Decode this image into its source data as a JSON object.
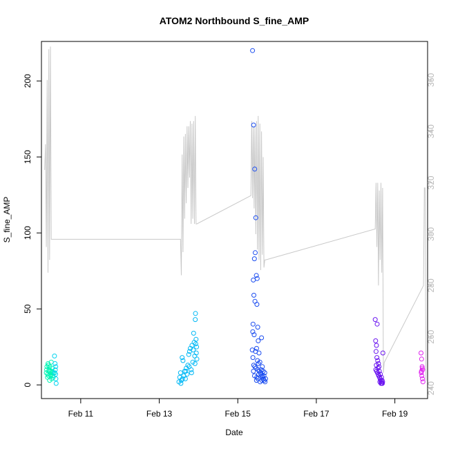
{
  "chart_data": {
    "type": "scatter",
    "title": "ATOM2 Northbound S_fine_AMP",
    "xlabel": "Date",
    "ylabel": "S_fine_AMP",
    "x_axis": {
      "kind": "date",
      "range": [
        "2023-02-10T00:00",
        "2023-02-19T20:00"
      ],
      "ticks": [
        {
          "value": "2023-02-11T00:00",
          "label": "Feb 11"
        },
        {
          "value": "2023-02-13T00:00",
          "label": "Feb 13"
        },
        {
          "value": "2023-02-15T00:00",
          "label": "Feb 15"
        },
        {
          "value": "2023-02-17T00:00",
          "label": "Feb 17"
        },
        {
          "value": "2023-02-19T00:00",
          "label": "Feb 19"
        }
      ]
    },
    "ylim": [
      -9,
      226
    ],
    "yticks": [
      0,
      50,
      100,
      150,
      200
    ],
    "y2lim": [
      236,
      375
    ],
    "y2ticks": [
      240,
      260,
      280,
      300,
      320,
      340,
      360
    ],
    "grid": false,
    "series": [
      {
        "color": "#00f5b5",
        "points": [
          [
            "2023-02-10T03:00",
            8
          ],
          [
            "2023-02-10T03:20",
            12
          ],
          [
            "2023-02-10T03:40",
            5
          ],
          [
            "2023-02-10T04:00",
            14
          ],
          [
            "2023-02-10T04:20",
            6
          ],
          [
            "2023-02-10T04:40",
            10
          ],
          [
            "2023-02-10T05:00",
            3
          ],
          [
            "2023-02-10T05:20",
            9
          ],
          [
            "2023-02-10T05:40",
            7
          ],
          [
            "2023-02-10T06:00",
            15
          ],
          [
            "2023-02-10T06:20",
            4
          ],
          [
            "2023-02-10T06:40",
            11
          ],
          [
            "2023-02-10T07:00",
            6
          ],
          [
            "2023-02-10T07:20",
            8
          ],
          [
            "2023-02-10T03:10",
            10
          ],
          [
            "2023-02-10T03:50",
            7
          ],
          [
            "2023-02-10T04:30",
            9
          ],
          [
            "2023-02-10T05:10",
            12
          ],
          [
            "2023-02-10T05:50",
            6
          ],
          [
            "2023-02-10T06:30",
            8
          ],
          [
            "2023-02-10T07:10",
            5
          ],
          [
            "2023-02-10T04:10",
            13
          ],
          [
            "2023-02-10T06:10",
            9
          ]
        ]
      },
      {
        "color": "#00d5f0",
        "points": [
          [
            "2023-02-10T08:00",
            19
          ],
          [
            "2023-02-10T08:20",
            14
          ],
          [
            "2023-02-10T08:30",
            10
          ],
          [
            "2023-02-10T08:40",
            7
          ],
          [
            "2023-02-10T08:50",
            4
          ],
          [
            "2023-02-10T09:00",
            1
          ],
          [
            "2023-02-10T08:10",
            8
          ],
          [
            "2023-02-10T08:45",
            12
          ]
        ]
      },
      {
        "color": "#00b8f5",
        "points": [
          [
            "2023-02-13T12:00",
            2
          ],
          [
            "2023-02-13T12:30",
            5
          ],
          [
            "2023-02-13T13:00",
            8
          ],
          [
            "2023-02-13T13:30",
            3
          ],
          [
            "2023-02-13T14:00",
            18
          ],
          [
            "2023-02-13T14:30",
            16
          ],
          [
            "2023-02-13T15:00",
            6
          ],
          [
            "2023-02-13T15:30",
            9
          ],
          [
            "2023-02-13T16:00",
            4
          ],
          [
            "2023-02-13T16:30",
            11
          ],
          [
            "2023-02-13T17:00",
            7
          ],
          [
            "2023-02-13T17:30",
            13
          ],
          [
            "2023-02-13T18:00",
            20
          ],
          [
            "2023-02-13T18:30",
            22
          ],
          [
            "2023-02-13T19:00",
            24
          ],
          [
            "2023-02-13T19:30",
            10
          ],
          [
            "2023-02-13T20:00",
            26
          ],
          [
            "2023-02-13T20:30",
            15
          ],
          [
            "2023-02-13T21:00",
            34
          ],
          [
            "2023-02-13T21:20",
            28
          ],
          [
            "2023-02-13T21:40",
            19
          ],
          [
            "2023-02-13T22:00",
            43
          ],
          [
            "2023-02-13T22:10",
            47
          ],
          [
            "2023-02-13T22:20",
            27
          ],
          [
            "2023-02-13T22:30",
            30
          ],
          [
            "2023-02-13T22:40",
            21
          ],
          [
            "2023-02-13T22:50",
            25
          ],
          [
            "2023-02-13T23:00",
            17
          ],
          [
            "2023-02-13T13:15",
            1
          ],
          [
            "2023-02-13T14:15",
            4
          ],
          [
            "2023-02-13T16:15",
            9
          ],
          [
            "2023-02-13T18:15",
            12
          ],
          [
            "2023-02-13T19:45",
            8
          ],
          [
            "2023-02-13T20:45",
            23
          ],
          [
            "2023-02-13T21:50",
            14
          ]
        ]
      },
      {
        "color": "#1a4cf0",
        "points": [
          [
            "2023-02-15T09:00",
            220
          ],
          [
            "2023-02-15T09:40",
            171
          ],
          [
            "2023-02-15T10:20",
            142
          ],
          [
            "2023-02-15T11:00",
            110
          ],
          [
            "2023-02-15T10:40",
            87
          ],
          [
            "2023-02-15T10:10",
            83
          ],
          [
            "2023-02-15T11:20",
            72
          ],
          [
            "2023-02-15T11:50",
            70
          ],
          [
            "2023-02-15T09:30",
            69
          ],
          [
            "2023-02-15T09:50",
            59
          ],
          [
            "2023-02-15T10:30",
            55
          ],
          [
            "2023-02-15T11:40",
            53
          ],
          [
            "2023-02-15T09:20",
            40
          ],
          [
            "2023-02-15T12:10",
            38
          ],
          [
            "2023-02-15T09:10",
            35
          ],
          [
            "2023-02-15T10:00",
            33
          ],
          [
            "2023-02-15T14:30",
            31
          ],
          [
            "2023-02-15T12:30",
            29
          ],
          [
            "2023-02-15T08:50",
            23
          ],
          [
            "2023-02-15T11:30",
            24
          ],
          [
            "2023-02-15T10:50",
            22
          ],
          [
            "2023-02-15T13:00",
            21
          ],
          [
            "2023-02-15T09:15",
            18
          ],
          [
            "2023-02-15T12:00",
            16
          ],
          [
            "2023-02-15T13:30",
            15
          ],
          [
            "2023-02-15T12:40",
            14
          ],
          [
            "2023-02-15T09:45",
            13
          ],
          [
            "2023-02-15T10:25",
            12
          ],
          [
            "2023-02-15T11:10",
            11
          ],
          [
            "2023-02-15T12:20",
            10
          ],
          [
            "2023-02-15T13:10",
            9
          ],
          [
            "2023-02-15T13:50",
            8
          ],
          [
            "2023-02-15T14:10",
            7
          ],
          [
            "2023-02-15T14:50",
            6
          ],
          [
            "2023-02-15T15:10",
            5
          ],
          [
            "2023-02-15T15:40",
            4
          ],
          [
            "2023-02-15T16:10",
            3
          ],
          [
            "2023-02-15T16:40",
            2
          ],
          [
            "2023-02-15T10:15",
            6
          ],
          [
            "2023-02-15T11:25",
            3
          ],
          [
            "2023-02-15T12:50",
            7
          ],
          [
            "2023-02-15T13:40",
            2
          ],
          [
            "2023-02-15T14:20",
            10
          ],
          [
            "2023-02-15T15:00",
            12
          ],
          [
            "2023-02-15T15:30",
            9
          ],
          [
            "2023-02-15T16:00",
            6
          ],
          [
            "2023-02-15T16:30",
            8
          ],
          [
            "2023-02-15T17:00",
            4
          ],
          [
            "2023-02-15T09:35",
            9
          ],
          [
            "2023-02-15T11:35",
            5
          ],
          [
            "2023-02-15T12:15",
            4
          ],
          [
            "2023-02-15T14:40",
            3
          ]
        ]
      },
      {
        "color": "#6a14f0",
        "points": [
          [
            "2023-02-18T12:00",
            43
          ],
          [
            "2023-02-18T13:10",
            40
          ],
          [
            "2023-02-18T12:15",
            29
          ],
          [
            "2023-02-18T12:45",
            26
          ],
          [
            "2023-02-18T16:40",
            21
          ],
          [
            "2023-02-18T12:30",
            22
          ],
          [
            "2023-02-18T13:00",
            18
          ],
          [
            "2023-02-18T13:30",
            16
          ],
          [
            "2023-02-18T14:00",
            14
          ],
          [
            "2023-02-18T14:20",
            12
          ],
          [
            "2023-02-18T12:20",
            10
          ],
          [
            "2023-02-18T12:50",
            9
          ],
          [
            "2023-02-18T13:20",
            8
          ],
          [
            "2023-02-18T13:50",
            7
          ],
          [
            "2023-02-18T14:10",
            6
          ],
          [
            "2023-02-18T14:40",
            5
          ],
          [
            "2023-02-18T15:00",
            4
          ],
          [
            "2023-02-18T15:20",
            3
          ],
          [
            "2023-02-18T15:40",
            2
          ],
          [
            "2023-02-18T16:00",
            1
          ],
          [
            "2023-02-18T16:20",
            1
          ],
          [
            "2023-02-18T14:30",
            9
          ],
          [
            "2023-02-18T15:10",
            7
          ],
          [
            "2023-02-18T15:50",
            5
          ],
          [
            "2023-02-18T16:10",
            3
          ],
          [
            "2023-02-18T13:40",
            11
          ],
          [
            "2023-02-18T12:40",
            13
          ],
          [
            "2023-02-18T14:50",
            2
          ],
          [
            "2023-02-18T15:30",
            1
          ],
          [
            "2023-02-18T16:30",
            2
          ]
        ]
      },
      {
        "color": "#e020f0",
        "points": [
          [
            "2023-02-19T16:00",
            21
          ],
          [
            "2023-02-19T16:20",
            17
          ],
          [
            "2023-02-19T16:40",
            12
          ],
          [
            "2023-02-19T17:00",
            10
          ],
          [
            "2023-02-19T16:10",
            8
          ],
          [
            "2023-02-19T16:30",
            6
          ],
          [
            "2023-02-19T16:50",
            4
          ],
          [
            "2023-02-19T17:10",
            2
          ],
          [
            "2023-02-19T16:15",
            9
          ],
          [
            "2023-02-19T16:45",
            11
          ]
        ]
      }
    ],
    "secondary_line": {
      "color": "#c8c8c8",
      "points": [
        [
          "2023-02-10T02:00",
          325
        ],
        [
          "2023-02-10T02:30",
          335
        ],
        [
          "2023-02-10T03:00",
          295
        ],
        [
          "2023-02-10T03:30",
          360
        ],
        [
          "2023-02-10T04:00",
          285
        ],
        [
          "2023-02-10T04:30",
          372
        ],
        [
          "2023-02-10T05:00",
          290
        ],
        [
          "2023-02-10T05:30",
          373
        ],
        [
          "2023-02-10T06:00",
          298
        ],
        [
          "2023-02-10T06:10",
          298
        ],
        [
          "2023-02-13T13:00",
          298
        ],
        [
          "2023-02-13T13:30",
          284
        ],
        [
          "2023-02-13T14:00",
          331
        ],
        [
          "2023-02-13T14:30",
          293
        ],
        [
          "2023-02-13T15:00",
          338
        ],
        [
          "2023-02-13T15:30",
          306
        ],
        [
          "2023-02-13T16:00",
          339
        ],
        [
          "2023-02-13T16:30",
          312
        ],
        [
          "2023-02-13T17:00",
          342
        ],
        [
          "2023-02-13T17:30",
          318
        ],
        [
          "2023-02-13T18:00",
          342
        ],
        [
          "2023-02-13T18:30",
          322
        ],
        [
          "2023-02-13T19:00",
          344
        ],
        [
          "2023-02-13T19:30",
          304
        ],
        [
          "2023-02-13T20:00",
          343
        ],
        [
          "2023-02-13T20:30",
          306
        ],
        [
          "2023-02-13T21:00",
          344
        ],
        [
          "2023-02-13T21:30",
          304
        ],
        [
          "2023-02-13T22:00",
          346
        ],
        [
          "2023-02-13T22:30",
          304
        ],
        [
          "2023-02-13T23:00",
          304
        ],
        [
          "2023-02-15T08:00",
          315
        ],
        [
          "2023-02-15T08:30",
          344
        ],
        [
          "2023-02-15T09:00",
          314
        ],
        [
          "2023-02-15T09:30",
          342
        ],
        [
          "2023-02-15T10:00",
          310
        ],
        [
          "2023-02-15T10:30",
          342
        ],
        [
          "2023-02-15T11:00",
          300
        ],
        [
          "2023-02-15T11:30",
          344
        ],
        [
          "2023-02-15T12:00",
          294
        ],
        [
          "2023-02-15T12:30",
          346
        ],
        [
          "2023-02-15T13:00",
          290
        ],
        [
          "2023-02-15T13:30",
          343
        ],
        [
          "2023-02-15T14:00",
          286
        ],
        [
          "2023-02-15T14:30",
          340
        ],
        [
          "2023-02-15T15:00",
          292
        ],
        [
          "2023-02-15T15:30",
          330
        ],
        [
          "2023-02-15T16:00",
          287
        ],
        [
          "2023-02-15T16:30",
          290
        ],
        [
          "2023-02-15T17:00",
          290
        ],
        [
          "2023-02-18T12:00",
          302
        ],
        [
          "2023-02-18T12:30",
          320
        ],
        [
          "2023-02-18T13:00",
          295
        ],
        [
          "2023-02-18T13:30",
          320
        ],
        [
          "2023-02-18T14:00",
          280
        ],
        [
          "2023-02-18T14:30",
          317
        ],
        [
          "2023-02-18T15:00",
          290
        ],
        [
          "2023-02-18T15:30",
          320
        ],
        [
          "2023-02-18T16:00",
          285
        ],
        [
          "2023-02-18T16:30",
          318
        ],
        [
          "2023-02-18T17:00",
          246
        ],
        [
          "2023-02-18T17:30",
          250
        ],
        [
          "2023-02-19T17:30",
          280
        ],
        [
          "2023-02-19T18:00",
          318
        ],
        [
          "2023-02-19T18:30",
          318
        ],
        [
          "2023-02-19T19:00",
          243
        ]
      ]
    }
  }
}
